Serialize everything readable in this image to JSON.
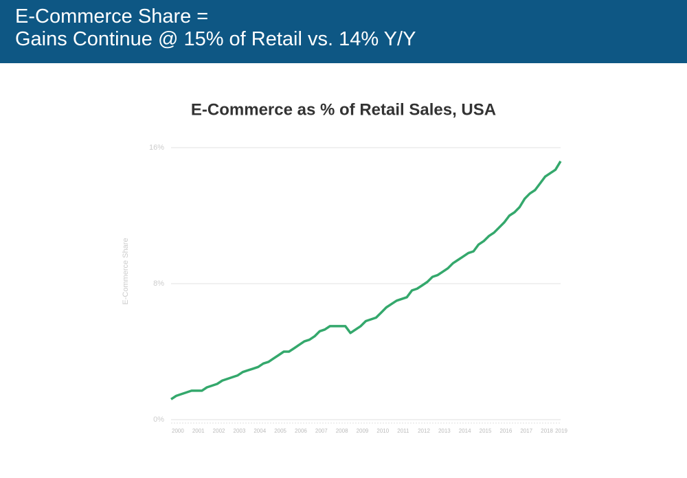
{
  "header": {
    "title_lines": [
      "E-Commerce Share =",
      "Gains Continue @ 15% of Retail vs. 14% Y/Y"
    ]
  },
  "chart_data": {
    "type": "line",
    "title": "E-Commerce as % of Retail Sales, USA",
    "y_label": "E-Commerce Share",
    "categories": [
      "2000",
      null,
      null,
      null,
      "2001",
      null,
      null,
      null,
      "2002",
      null,
      null,
      null,
      "2003",
      null,
      null,
      null,
      "2004",
      null,
      null,
      null,
      "2005",
      null,
      null,
      null,
      "2006",
      null,
      null,
      null,
      "2007",
      null,
      null,
      null,
      "2008",
      null,
      null,
      null,
      "2009",
      null,
      null,
      null,
      "2010",
      null,
      null,
      null,
      "2011",
      null,
      null,
      null,
      "2012",
      null,
      null,
      null,
      "2013",
      null,
      null,
      null,
      "2014",
      null,
      null,
      null,
      "2015",
      null,
      null,
      null,
      "2016",
      null,
      null,
      null,
      "2017",
      null,
      null,
      null,
      "2018",
      null,
      null,
      null,
      "2019"
    ],
    "series": [
      {
        "name": "E-Commerce Share",
        "color": "#34a86c",
        "values": [
          1.2,
          1.4,
          1.5,
          1.6,
          1.7,
          1.7,
          1.7,
          1.9,
          2.0,
          2.1,
          2.3,
          2.4,
          2.5,
          2.6,
          2.8,
          2.9,
          3.0,
          3.1,
          3.3,
          3.4,
          3.6,
          3.8,
          4.0,
          4.0,
          4.2,
          4.4,
          4.6,
          4.7,
          4.9,
          5.2,
          5.3,
          5.5,
          5.5,
          5.5,
          5.5,
          5.1,
          5.3,
          5.5,
          5.8,
          5.9,
          6.0,
          6.3,
          6.6,
          6.8,
          7.0,
          7.1,
          7.2,
          7.6,
          7.7,
          7.9,
          8.1,
          8.4,
          8.5,
          8.7,
          8.9,
          9.2,
          9.4,
          9.6,
          9.8,
          9.9,
          10.3,
          10.5,
          10.8,
          11.0,
          11.3,
          11.6,
          12.0,
          12.2,
          12.5,
          13.0,
          13.3,
          13.5,
          13.9,
          14.3,
          14.5,
          14.7,
          15.2
        ]
      }
    ],
    "ylim": [
      0,
      16
    ],
    "yticks": [
      {
        "value": 0,
        "label": "0%"
      },
      {
        "value": 8,
        "label": "8%"
      },
      {
        "value": 16,
        "label": "16%"
      }
    ],
    "grid": true
  }
}
